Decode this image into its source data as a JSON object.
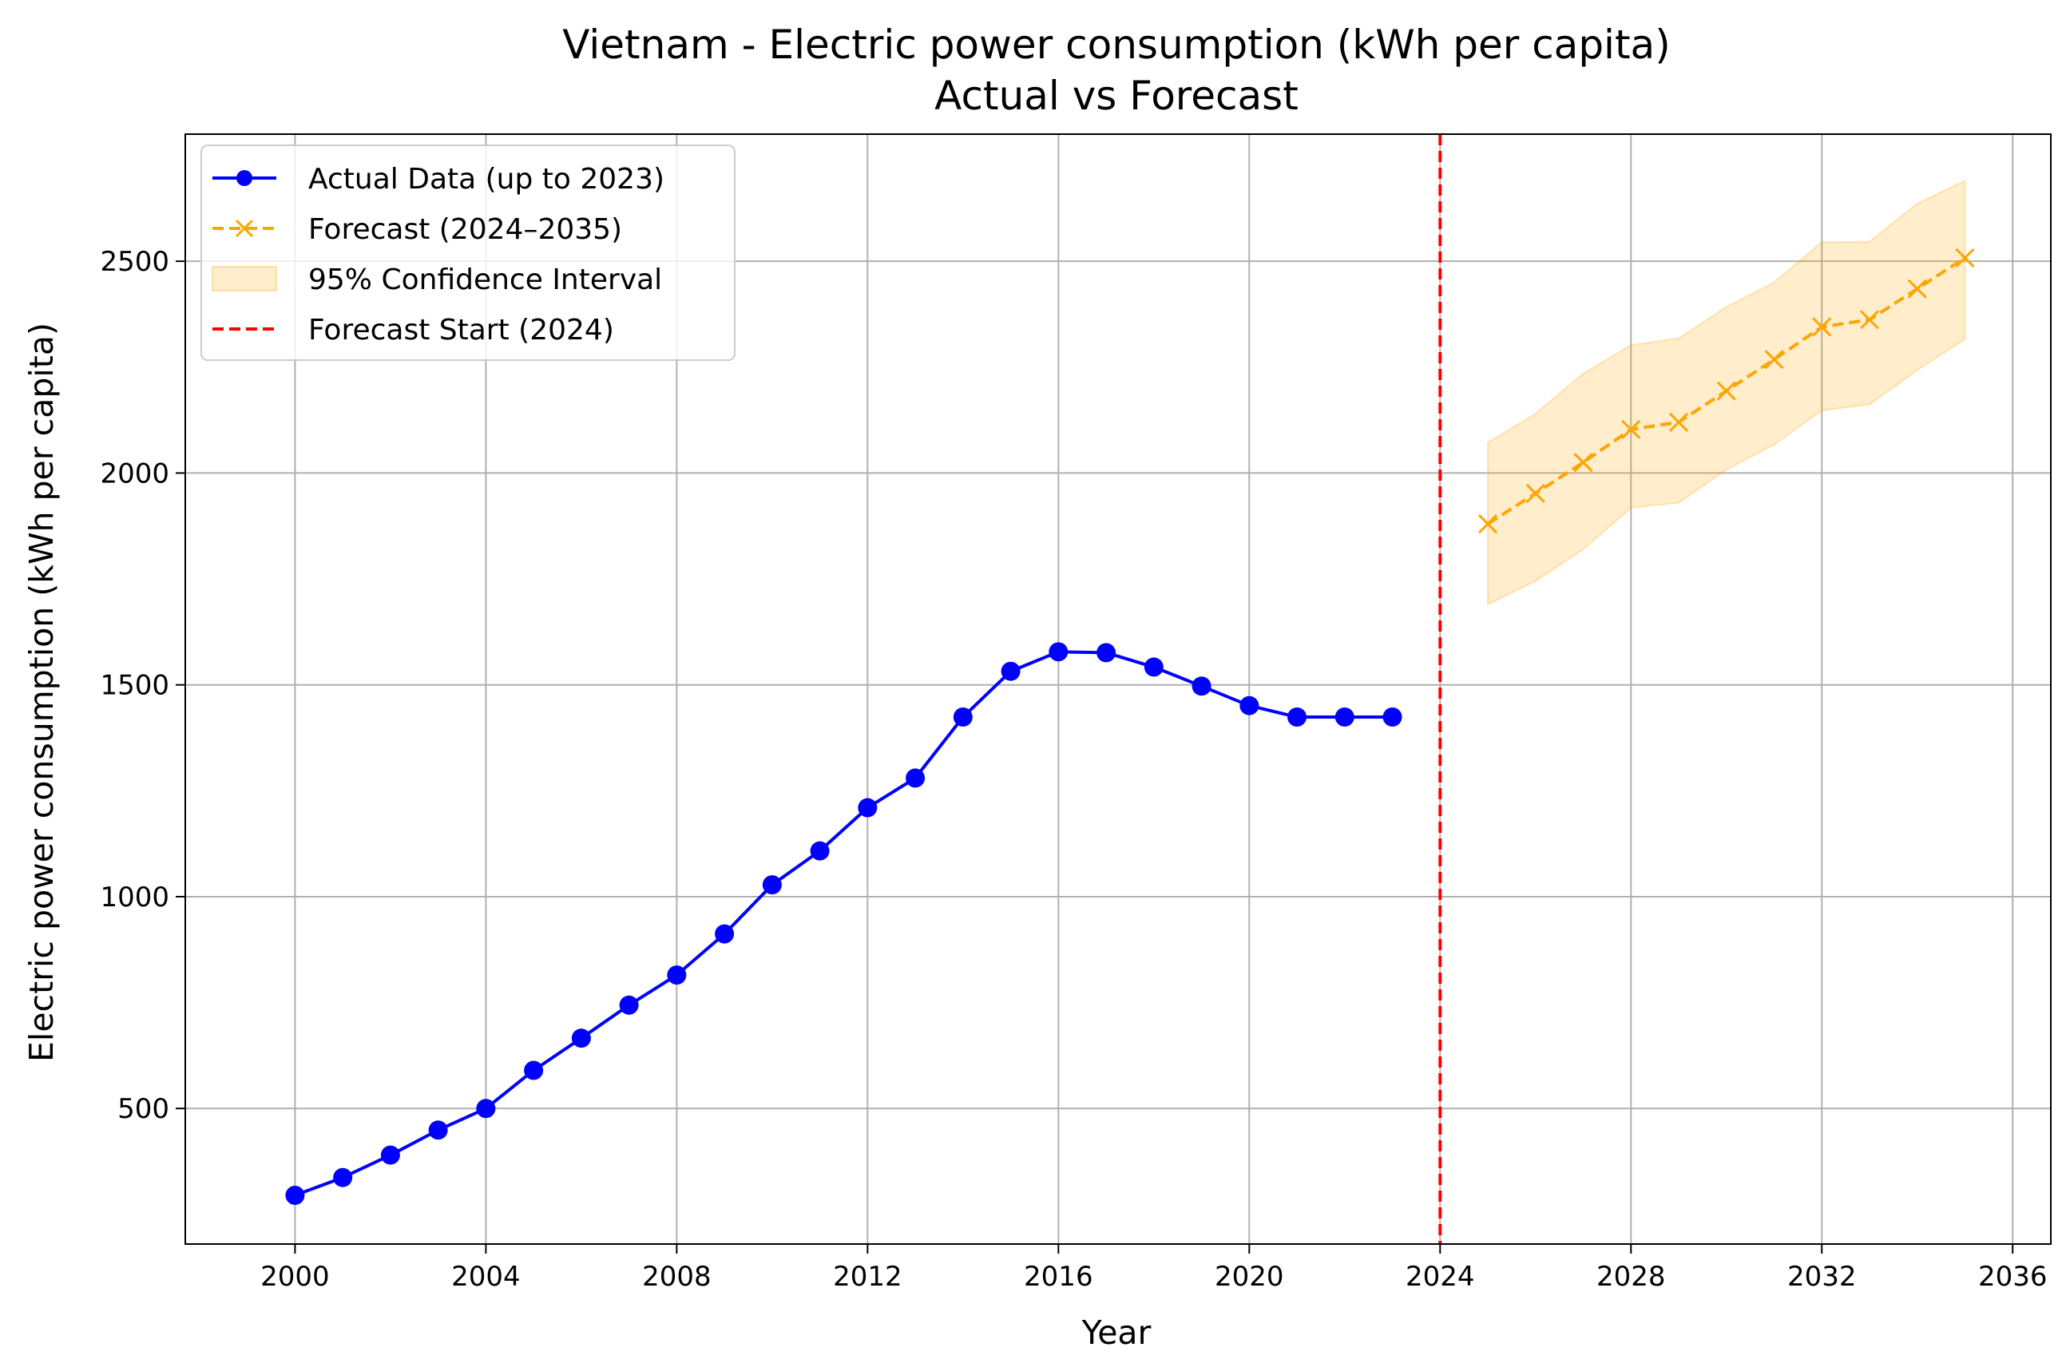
{
  "chart_data": {
    "type": "line",
    "title": "Vietnam - Electric power consumption (kWh per capita)",
    "subtitle": "Actual vs Forecast",
    "xlabel": "Year",
    "ylabel": "Electric power consumption (kWh per capita)",
    "xlim": [
      1997.7,
      2036.8
    ],
    "ylim": [
      180,
      2800
    ],
    "x_ticks": [
      2000,
      2004,
      2008,
      2012,
      2016,
      2020,
      2024,
      2028,
      2032,
      2036
    ],
    "x_tick_labels": [
      "2000",
      "2004",
      "2008",
      "2012",
      "2016",
      "2020",
      "2024",
      "2028",
      "2032",
      "2036"
    ],
    "y_ticks": [
      500,
      1000,
      1500,
      2000,
      2500
    ],
    "y_tick_labels": [
      "500",
      "1000",
      "1500",
      "2000",
      "2500"
    ],
    "grid": true,
    "legend_position": "upper-left",
    "series": [
      {
        "name": "Actual Data (up to 2023)",
        "color": "#0000ff",
        "line_style": "solid",
        "marker": "circle",
        "x": [
          2000,
          2001,
          2002,
          2003,
          2004,
          2005,
          2006,
          2007,
          2008,
          2009,
          2010,
          2011,
          2012,
          2013,
          2014,
          2015,
          2016,
          2017,
          2018,
          2019,
          2020,
          2021,
          2022,
          2023
        ],
        "y": [
          295,
          337,
          390,
          449,
          500,
          590,
          666,
          744,
          815,
          912,
          1028,
          1108,
          1210,
          1280,
          1424,
          1532,
          1578,
          1576,
          1542,
          1497,
          1451,
          1424,
          1424,
          1424
        ]
      },
      {
        "name": "Forecast (2024–2035)",
        "color": "#ffa500",
        "line_style": "dashed",
        "marker": "x",
        "x": [
          2025,
          2026,
          2027,
          2028,
          2029,
          2030,
          2031,
          2032,
          2033,
          2034,
          2035
        ],
        "y": [
          1880,
          1952,
          2025,
          2103,
          2120,
          2194,
          2268,
          2345,
          2362,
          2435,
          2508
        ]
      }
    ],
    "confidence_interval": {
      "name": "95% Confidence Interval",
      "color": "#ffa500",
      "x": [
        2025,
        2026,
        2027,
        2028,
        2029,
        2030,
        2031,
        2032,
        2033,
        2034,
        2035
      ],
      "lower": [
        1690,
        1745,
        1820,
        1918,
        1930,
        2008,
        2067,
        2148,
        2162,
        2243,
        2316
      ],
      "upper": [
        2072,
        2140,
        2235,
        2302,
        2318,
        2392,
        2450,
        2545,
        2546,
        2636,
        2690
      ]
    },
    "vline": {
      "name": "Forecast Start (2024)",
      "x": 2024,
      "color": "#ff0000",
      "line_style": "dashed"
    }
  }
}
